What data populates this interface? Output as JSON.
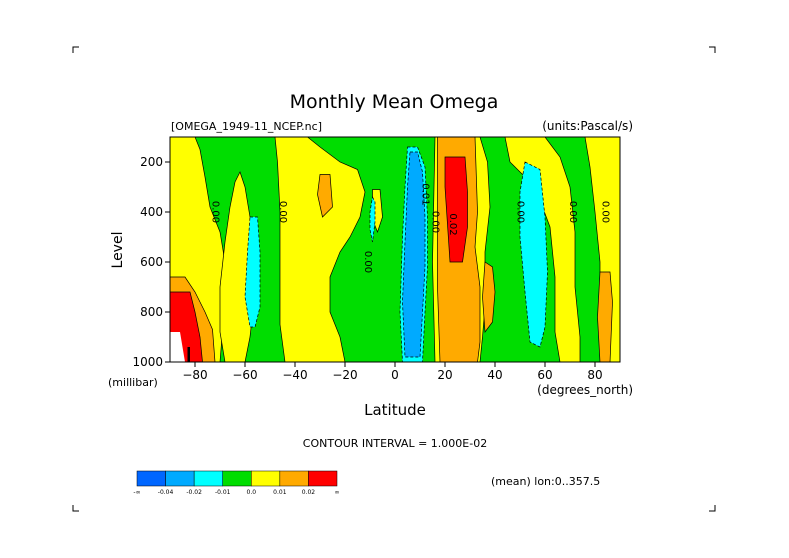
{
  "chart_data": {
    "type": "heatmap",
    "title": "Monthly Mean Omega",
    "file_label": "[OMEGA_1949-11_NCEP.nc]",
    "units_label": "(units:Pascal/s)",
    "xlabel": "Latitude",
    "x_units": "(degrees_north)",
    "ylabel": "Level",
    "y_units": "(millibar)",
    "xlim": [
      -90,
      90
    ],
    "ylim": [
      1000,
      100
    ],
    "x_ticks": [
      -80,
      -60,
      -40,
      -20,
      0,
      20,
      40,
      60,
      80
    ],
    "y_ticks": [
      1000,
      800,
      600,
      400,
      200
    ],
    "contour_interval_text": "CONTOUR INTERVAL = 1.000E-02",
    "subset_text": "(mean) lon:0..357.5",
    "colorbar": {
      "colors": [
        "#0066ff",
        "#00aaff",
        "#00ffff",
        "#00dd00",
        "#ffff00",
        "#ffaa00",
        "#ff0000"
      ],
      "labels": [
        "-∞",
        "-0.04",
        "-0.02",
        "-0.01",
        "0.0",
        "0.01",
        "0.02",
        "∞"
      ]
    },
    "background_color": "#00dd00",
    "regions": [
      {
        "level": "0.0",
        "color": "#ffff00",
        "points": [
          [
            -90,
            100
          ],
          [
            -80,
            100
          ],
          [
            -78,
            150
          ],
          [
            -76,
            260
          ],
          [
            -74,
            380
          ],
          [
            -70,
            480
          ],
          [
            -68,
            600
          ],
          [
            -68,
            750
          ],
          [
            -70,
            1000
          ],
          [
            -90,
            1000
          ]
        ]
      },
      {
        "level": "0.0",
        "color": "#ffff00",
        "points": [
          [
            -62,
            240
          ],
          [
            -60,
            300
          ],
          [
            -58,
            420
          ],
          [
            -56,
            560
          ],
          [
            -56,
            720
          ],
          [
            -58,
            900
          ],
          [
            -60,
            1000
          ],
          [
            -68,
            1000
          ],
          [
            -70,
            880
          ],
          [
            -70,
            700
          ],
          [
            -68,
            520
          ],
          [
            -66,
            380
          ],
          [
            -64,
            280
          ]
        ]
      },
      {
        "level": "0.0",
        "color": "#ffff00",
        "points": [
          [
            -48,
            100
          ],
          [
            -35,
            100
          ],
          [
            -30,
            140
          ],
          [
            -22,
            200
          ],
          [
            -15,
            230
          ],
          [
            -12,
            320
          ],
          [
            -14,
            420
          ],
          [
            -18,
            500
          ],
          [
            -22,
            560
          ],
          [
            -26,
            660
          ],
          [
            -26,
            800
          ],
          [
            -22,
            900
          ],
          [
            -20,
            1000
          ],
          [
            -44,
            1000
          ],
          [
            -46,
            850
          ],
          [
            -46,
            600
          ],
          [
            -46,
            400
          ],
          [
            -47,
            200
          ]
        ]
      },
      {
        "level": "0.0",
        "color": "#ffff00",
        "points": [
          [
            -9,
            310
          ],
          [
            -6,
            310
          ],
          [
            -5,
            420
          ],
          [
            -7,
            480
          ],
          [
            -9,
            430
          ]
        ]
      },
      {
        "level": "0.0",
        "color": "#ffff00",
        "points": [
          [
            16,
            100
          ],
          [
            34,
            100
          ],
          [
            37,
            200
          ],
          [
            38,
            380
          ],
          [
            36,
            560
          ],
          [
            36,
            780
          ],
          [
            35,
            900
          ],
          [
            34,
            1000
          ],
          [
            16,
            1000
          ],
          [
            15,
            600
          ]
        ]
      },
      {
        "level": "0.0",
        "color": "#ffff00",
        "points": [
          [
            44,
            100
          ],
          [
            60,
            100
          ],
          [
            66,
            180
          ],
          [
            70,
            300
          ],
          [
            72,
            480
          ],
          [
            72,
            700
          ],
          [
            74,
            900
          ],
          [
            74,
            1000
          ],
          [
            66,
            1000
          ],
          [
            64,
            880
          ],
          [
            64,
            660
          ],
          [
            62,
            460
          ],
          [
            56,
            300
          ],
          [
            46,
            200
          ]
        ]
      },
      {
        "level": "0.0",
        "color": "#ffff00",
        "points": [
          [
            76,
            100
          ],
          [
            90,
            100
          ],
          [
            90,
            1000
          ],
          [
            84,
            1000
          ],
          [
            82,
            800
          ],
          [
            82,
            600
          ],
          [
            80,
            400
          ],
          [
            78,
            220
          ]
        ]
      },
      {
        "level": "0.01",
        "color": "#ffaa00",
        "points": [
          [
            17,
            100
          ],
          [
            32,
            100
          ],
          [
            33,
            400
          ],
          [
            32,
            540
          ],
          [
            34,
            700
          ],
          [
            34,
            920
          ],
          [
            33,
            1000
          ],
          [
            18,
            1000
          ],
          [
            17,
            700
          ]
        ]
      },
      {
        "level": "0.01",
        "color": "#ffaa00",
        "points": [
          [
            -30,
            250
          ],
          [
            -26,
            250
          ],
          [
            -25,
            380
          ],
          [
            -29,
            420
          ],
          [
            -31,
            330
          ]
        ]
      },
      {
        "level": "0.01",
        "color": "#ffaa00",
        "points": [
          [
            36,
            600
          ],
          [
            39,
            620
          ],
          [
            40,
            720
          ],
          [
            39,
            840
          ],
          [
            36,
            880
          ],
          [
            35,
            740
          ]
        ]
      },
      {
        "level": "0.01",
        "color": "#ffaa00",
        "points": [
          [
            82,
            640
          ],
          [
            86,
            640
          ],
          [
            87,
            760
          ],
          [
            86,
            1000
          ],
          [
            82,
            1000
          ],
          [
            81,
            820
          ]
        ]
      },
      {
        "level": "0.01",
        "color": "#ffaa00",
        "points": [
          [
            -90,
            660
          ],
          [
            -84,
            660
          ],
          [
            -80,
            720
          ],
          [
            -76,
            800
          ],
          [
            -73,
            870
          ],
          [
            -72,
            1000
          ],
          [
            -90,
            1000
          ]
        ]
      },
      {
        "level": "0.02",
        "color": "#ff0000",
        "points": [
          [
            20,
            180
          ],
          [
            28,
            180
          ],
          [
            29,
            320
          ],
          [
            29,
            460
          ],
          [
            27,
            600
          ],
          [
            22,
            600
          ],
          [
            21,
            450
          ],
          [
            20,
            300
          ]
        ]
      },
      {
        "level": "0.02",
        "color": "#ff0000",
        "points": [
          [
            -90,
            720
          ],
          [
            -82,
            720
          ],
          [
            -80,
            800
          ],
          [
            -78,
            900
          ],
          [
            -77,
            1000
          ],
          [
            -90,
            1000
          ]
        ]
      },
      {
        "level": "-0.01",
        "color": "#00ffff",
        "points": [
          [
            5,
            140
          ],
          [
            9,
            140
          ],
          [
            12,
            220
          ],
          [
            13,
            420
          ],
          [
            13,
            620
          ],
          [
            12,
            800
          ],
          [
            11,
            1000
          ],
          [
            3,
            1000
          ],
          [
            2,
            800
          ],
          [
            3,
            500
          ],
          [
            4,
            300
          ]
        ]
      },
      {
        "level": "-0.01",
        "color": "#00ffff",
        "points": [
          [
            -58,
            420
          ],
          [
            -55,
            420
          ],
          [
            -54,
            560
          ],
          [
            -54,
            780
          ],
          [
            -56,
            860
          ],
          [
            -58,
            860
          ],
          [
            -60,
            740
          ],
          [
            -59,
            560
          ]
        ]
      },
      {
        "level": "-0.01",
        "color": "#00ffff",
        "points": [
          [
            52,
            200
          ],
          [
            58,
            230
          ],
          [
            60,
            420
          ],
          [
            61,
            640
          ],
          [
            60,
            860
          ],
          [
            58,
            940
          ],
          [
            54,
            920
          ],
          [
            52,
            720
          ],
          [
            50,
            500
          ],
          [
            50,
            320
          ]
        ]
      },
      {
        "level": "-0.01",
        "color": "#00ffff",
        "points": [
          [
            -9,
            340
          ],
          [
            -8,
            360
          ],
          [
            -8,
            440
          ],
          [
            -9,
            520
          ],
          [
            -10,
            470
          ],
          [
            -10,
            400
          ]
        ]
      },
      {
        "level": "-0.02",
        "color": "#00aaff",
        "points": [
          [
            6,
            160
          ],
          [
            9,
            160
          ],
          [
            11,
            240
          ],
          [
            12,
            420
          ],
          [
            12,
            620
          ],
          [
            11,
            800
          ],
          [
            10,
            980
          ],
          [
            4,
            980
          ],
          [
            3,
            760
          ],
          [
            4,
            520
          ],
          [
            5,
            300
          ]
        ]
      },
      {
        "level": "missing",
        "color": "#ffffff",
        "points": [
          [
            -90,
            880
          ],
          [
            -86,
            880
          ],
          [
            -85,
            940
          ],
          [
            -84,
            1000
          ],
          [
            -90,
            1000
          ]
        ]
      },
      {
        "level": "missing",
        "color": "#000000",
        "points": [
          [
            -83,
            940
          ],
          [
            -82,
            940
          ],
          [
            -82,
            1000
          ],
          [
            -83,
            1000
          ]
        ]
      }
    ],
    "contour_labels": [
      {
        "text": "0.00",
        "lat": -73,
        "lev": 400
      },
      {
        "text": "0.00",
        "lat": -46,
        "lev": 400
      },
      {
        "text": "0.00",
        "lat": -12,
        "lev": 600
      },
      {
        "text": "0.01",
        "lat": 11,
        "lev": 330
      },
      {
        "text": "0.00",
        "lat": 15,
        "lev": 440
      },
      {
        "text": "0.02",
        "lat": 22,
        "lev": 450
      },
      {
        "text": "0.00",
        "lat": 49,
        "lev": 400
      },
      {
        "text": "0.00",
        "lat": 70,
        "lev": 400
      },
      {
        "text": "0.00",
        "lat": 83,
        "lev": 400
      }
    ]
  }
}
